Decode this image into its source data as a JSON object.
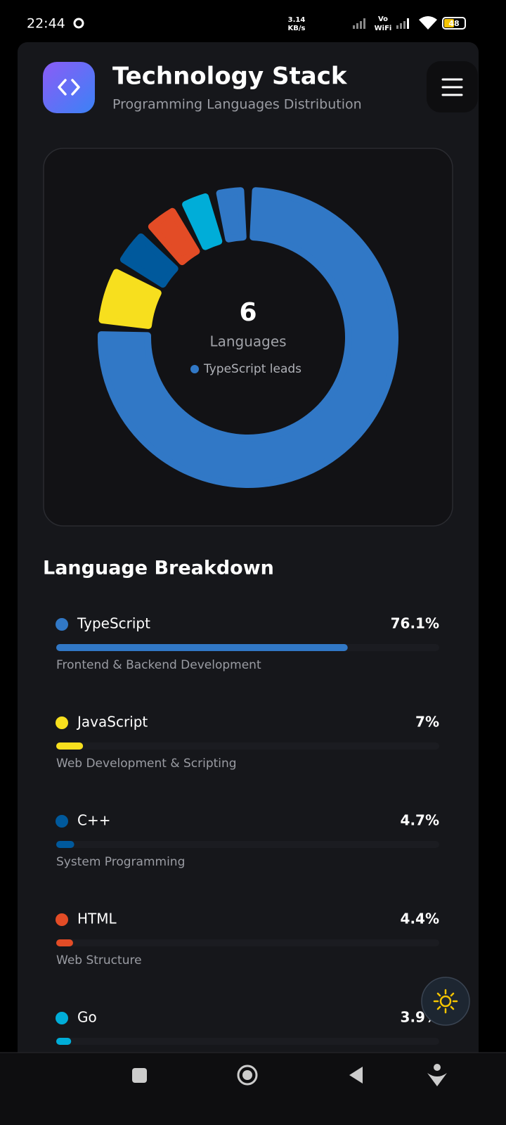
{
  "status_bar": {
    "time": "22:44",
    "speed": "3.14",
    "speed_unit": "KB/s",
    "vo": "Vo",
    "wifi": "WiFi",
    "battery": "48"
  },
  "header": {
    "title": "Technology Stack",
    "subtitle": "Programming Languages Distribution"
  },
  "chart_data": {
    "type": "pie",
    "center_value": "6",
    "center_label": "Languages",
    "center_note": "TypeScript leads",
    "breakdown_title": "Language Breakdown",
    "categories": [
      "TypeScript",
      "JavaScript",
      "C++",
      "HTML",
      "Go",
      null
    ],
    "values": [
      76.1,
      7,
      4.7,
      4.4,
      3.9,
      3.9
    ],
    "value_labels": [
      "76.1%",
      "7%",
      "4.7%",
      "4.4%",
      "3.9%",
      null
    ],
    "descriptions": [
      "Frontend & Backend Development",
      "Web Development & Scripting",
      "System Programming",
      "Web Structure",
      null,
      null
    ],
    "colors": [
      "#3178c6",
      "#f7df1e",
      "#00599c",
      "#e34c26",
      "#00add8",
      "#3178c6"
    ],
    "xlim": [
      0,
      100
    ]
  }
}
